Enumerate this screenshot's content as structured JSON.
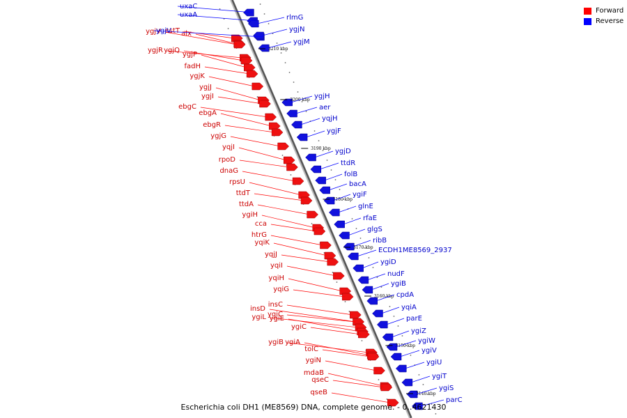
{
  "caption": "Escherichia coli DH1 (ME8569) DNA, complete genome. - 0..4621430",
  "legend": [
    {
      "label": "Forward",
      "color": "#ff0000"
    },
    {
      "label": "Reverse",
      "color": "#0000ff"
    }
  ],
  "colors": {
    "forward_label": "#cc0000",
    "reverse_label": "#0000cc",
    "forward_gene": "#ee1111",
    "reverse_gene": "#1111dd",
    "backbone": "#888888"
  },
  "scale_markers": [
    {
      "label": "3210 kbp"
    },
    {
      "label": "3200 kbp"
    },
    {
      "label": "3190 kbp"
    },
    {
      "label": "3180 kbp"
    },
    {
      "label": "3170 kbp"
    },
    {
      "label": "3160 kbp"
    },
    {
      "label": "3150 kbp"
    },
    {
      "label": "3140 kbp"
    }
  ],
  "forward_genes": [
    "sstT",
    "alx",
    "ygjV",
    "ygjR",
    "ygjQ",
    "ygjP",
    "fadH",
    "ygjK",
    "ygjJ",
    "ygjI",
    "ebgC",
    "ebgA",
    "ebgR",
    "ygjG",
    "yqjI",
    "rpoD",
    "dnaG",
    "rpsU",
    "ttdT",
    "ttdA",
    "ygiH",
    "cca",
    "htrG",
    "yqiK",
    "yqjJ",
    "yqiI",
    "yqiH",
    "yqiG",
    "insC",
    "insD",
    "yqiC",
    "ygiL",
    "ygiE",
    "ygiC",
    "ygiB",
    "ygiA",
    "tolC",
    "ygiN",
    "mdaB",
    "qseC",
    "qseB"
  ],
  "reverse_genes": [
    "uxaC",
    "uxaA",
    "ygjV",
    "rlmG",
    "ygjN",
    "ygjM",
    "ygjH",
    "aer",
    "yqjH",
    "ygjF",
    "ygjD",
    "ttdR",
    "folB",
    "bacA",
    "ygiF",
    "glnE",
    "rfaE",
    "glgS",
    "ribB",
    "ECDH1ME8569_2937",
    "ygiD",
    "nudF",
    "ygiB",
    "cpdA",
    "yqiA",
    "parE",
    "ygiZ",
    "ygiW",
    "ygiV",
    "ygiU",
    "ygiT",
    "ygiS",
    "parC"
  ]
}
